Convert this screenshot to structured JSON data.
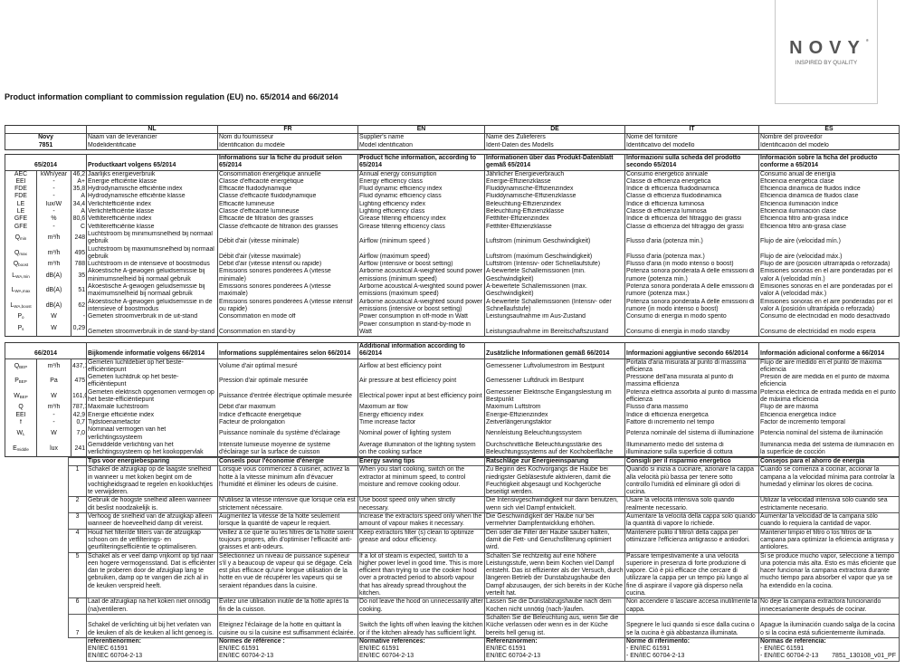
{
  "logo": {
    "brand": "NOVY",
    "tagline": "INSPIRED BY QUALITY"
  },
  "title": "Product information compliant to commission regulation (EU) no. 65/2014 and 66/2014",
  "footer": "7851_130108_v01_PF",
  "languages": [
    "NL",
    "FR",
    "EN",
    "DE",
    "IT",
    "ES"
  ],
  "supplier": {
    "name": "Novy",
    "model": "7851",
    "name_labels": [
      "Naam van de leverancier",
      "Nom du fournisseur",
      "Supplier's name",
      "Name des Zulieferers",
      "Nome del fornitore",
      "Nombre del proveedor"
    ],
    "model_labels": [
      "Modelidentificatie",
      "Identification du modèle",
      "Model identification",
      "Ident-Daten des Modells",
      "Identificativo del modello",
      "Identificación del modelo"
    ]
  },
  "table65": {
    "code": "65/2014",
    "headers": [
      "Productkaart volgens 65/2014",
      "Informations sur la fiche du produit selon 65/2014",
      "Product fiche information, according to 65/2014",
      "Informationen über das Produkt-Datenblatt gemäß 65/2014",
      "Informazioni sulla scheda del prodotto secondo 65/2014",
      "Información sobre la ficha del producto conforme a 65/2014"
    ],
    "rows": [
      {
        "sym": "AEC",
        "sub": "",
        "unit": "kWh/year",
        "value": "46,2",
        "text": [
          "Jaarlijks energieverbruik",
          "Consommation énergétique annuelle",
          "Annual energy consumption",
          "Jährlicher Energieverbrauch",
          "Consumo energetico annuale",
          "Consumo anual de energía"
        ]
      },
      {
        "sym": "EEI",
        "sub": "",
        "unit": "-",
        "value": "A+",
        "text": [
          "Energie efficiëntie klasse",
          "Classe d'efficacité énergétique",
          "Energy efficiency class",
          "Energie-Effizienzklasse",
          "Classe di efficienza energetica",
          "Eficiencia energética clase"
        ]
      },
      {
        "sym": "FDE",
        "sub": "",
        "unit": "-",
        "value": "35,8",
        "text": [
          "Hydrodynamische efficiëntie index",
          "Efficacité fluidodynamique",
          "Fluid dynamic efficiency index",
          "Fluiddynamische-Effizienzindex",
          "Indice di efficienza fluidodinamica",
          "Eficiencia dinámica de fluidos índice"
        ]
      },
      {
        "sym": "FDE",
        "sub": "",
        "unit": "-",
        "value": "A",
        "text": [
          "Hydrodynamische efficiëntie klasse",
          "Classe d'efficacité fluidodynamique",
          "Fluid dynamic efficiency class",
          "Fluiddynamische-Effizienzklasse",
          "Classe di efficienza fluidodinamica",
          "Eficiencia dinámica de fluidos clase"
        ]
      },
      {
        "sym": "LE",
        "sub": "",
        "unit": "lux/W",
        "value": "34,4",
        "text": [
          "Verlichtefficiëntie index",
          "Efficacité lumineuse",
          "Lighting efficiency index",
          "Beleuchtung-Effizienzindex",
          "Indice di efficienza luminosa",
          "Eficiencia iluminación índice"
        ]
      },
      {
        "sym": "LE",
        "sub": "",
        "unit": "-",
        "value": "A",
        "text": [
          "Verlichtefficiëntie klasse",
          "Classe d'efficacité lumineuse",
          "Lighting efficiency class",
          "Beleuchtung-Effizienzklasse",
          "Classe di efficienza luminosa",
          "Eficiencia iluminación clase"
        ]
      },
      {
        "sym": "GFE",
        "sub": "",
        "unit": "%",
        "value": "80,6",
        "text": [
          "Vetfilterefficiëntie index",
          "Efficacité de filtration des graisses",
          "Grease filtering efficiency index",
          "Fettfilter-Effizienzindex",
          "Indice di efficienza del filtraggio dei grassi",
          "Eficiencia filtro anti-grasa índice"
        ]
      },
      {
        "sym": "GFE",
        "sub": "",
        "unit": "-",
        "value": "C",
        "text": [
          "Vetfilterefficiëntie klasse",
          "Classe d'efficacité de filtration des graisses",
          "Grease filtering efficiency class",
          "Fettfilter-Effizienzklasse",
          "Classe di efficienza del filtraggio dei grassi",
          "Eficiencia filtro anti-grasa clase"
        ]
      },
      {
        "sym": "Q",
        "sub": "min",
        "unit": "m³/h",
        "value": "248",
        "text": [
          "Luchtstroom bij minimumsnelheid bij normaal gebruik",
          "Débit d'air (vitesse minimale)",
          "Airflow (minimum speed )",
          "Luftstrom (minimum Geschwindigkeit)",
          "Flusso d'aria (potenza min.)",
          "Flujo de aire (velocidad mín.)"
        ]
      },
      {
        "sym": "Q",
        "sub": "max",
        "unit": "m³/h",
        "value": "495",
        "text": [
          "Luchtstroom bij maximumsnelheid bij normaal gebruik",
          "Débit d'air (vitesse maximale)",
          "Airflow (maximum speed)",
          "Luftstrom (maximum Geschwindigkeit)",
          "Flusso d'aria (potenza max.)",
          "Flujo de aire (velocidad máx.)"
        ]
      },
      {
        "sym": "Q",
        "sub": "boost",
        "unit": "m³/h",
        "value": "788",
        "text": [
          "Luchtstroom in de intensieve of boostmodus",
          "Débit d'air (vitesse intensif ou rapide)",
          "Airflow (intensive or boost setting)",
          "Luftstrom (Intensiv- oder Schnellaufstufe)",
          "Flusso d'aria (in modo intenso o boost)",
          "Flujo de aire (posición ultrarrápida o reforzada)"
        ]
      },
      {
        "sym": "L",
        "sub": "WA,min",
        "unit": "dB(A)",
        "value": "35",
        "text": [
          "Akoestische A-gewogen geluidsemissie bij minimumsnelheid bij normaal gebruik",
          "Emissions sonores pondérées A (vitesse minimale)",
          "Airborne acoustical A-weighted sound power emissions (minimum speed)",
          "A-bewertete Schallemissionen (min. Geschwindigkeit)",
          "Potenza sonora ponderata A delle emissioni di rumore (potenza min.)",
          "Emisiones sonoras en el aire ponderadas por el valor A (velocidad mín.)"
        ]
      },
      {
        "sym": "L",
        "sub": "WA,max",
        "unit": "dB(A)",
        "value": "51",
        "text": [
          "Akoestische A-gewogen geluidsemissie bij maximumsnelheid bij normaal gebruik",
          "Emissions sonores pondérées A (vitesse maximale)",
          "Airborne acoustical A-weighted sound power emissions (maximum speed)",
          "A-bewertete Schallemissionen (max. Geschwindigkeit)",
          "Potenza sonora ponderata A delle emissioni di rumore (potenza max.)",
          "Emisiones sonoras en el aire ponderadas por el valor A (velocidad máx.)"
        ]
      },
      {
        "sym": "L",
        "sub": "WA,boost",
        "unit": "dB(A)",
        "value": "62",
        "text": [
          "Akoestische A-gewogen geluidsemissie in de intensieve of boostmodus",
          "Emissions sonores pondérées A (vitesse intensif ou rapide)",
          "Airborne acoustical A-weighted sound power emissions (intensive or boost setting)",
          "A-bewertete Schallemissionen (Intensiv- oder Schnellaufstufe)",
          "Potenza sonora ponderata A delle emissioni di rumore (in modo intenso o boost)",
          "Emisiones sonoras en el aire ponderadas por el valor A (posición ultrarrápida o reforzada)"
        ]
      },
      {
        "sym": "P",
        "sub": "o",
        "unit": "W",
        "value": "-",
        "text": [
          "Gemeten stroomverbruik in de uit-stand",
          "Consommation en mode off",
          "Power consumption in off-mode in Watt",
          "Leistungsaufnahme im Aus-Zustand",
          "Consumo di energia in modo spento",
          "Consumo de electricidad en modo desactivado"
        ]
      },
      {
        "sym": "P",
        "sub": "s",
        "unit": "W",
        "value": "0,29",
        "text": [
          "Gemeten stroomverbruik in de stand-by-stand",
          "Consommation en stand-by",
          "Power consumption in stand-by-mode in Watt",
          "Leistungsaufnahme im Bereitschaftszustand",
          "Consumo di energia in modo standby",
          "Consumo de electricidad en modo espera"
        ]
      }
    ]
  },
  "table66": {
    "code": "66/2014",
    "headers": [
      "Bijkomende informatie volgens 66/2014",
      "Informations supplémentaires selon 66/2014",
      "Additional information according to 66/2014",
      "Zusätzliche Informationen gemäß 66/2014",
      "Informazioni aggiuntive secondo 66/2014",
      "Información adicional conforme a 66/2014"
    ],
    "rows": [
      {
        "sym": "Q",
        "sub": "BEP",
        "unit": "m³/h",
        "value": "437,1",
        "text": [
          "Gemeten luchtdebiet op het beste-efficiëntiepunt",
          "Volume d'air optimal mesuré",
          "Airflow at best efficiency point",
          "Gemessener Luftvolumestrom im Bestpunt",
          "Portata d'aria misurata al punto di massima efficienza",
          "Flujo de aire medido en el punto de máxima eficiencia"
        ]
      },
      {
        "sym": "P",
        "sub": "BEP",
        "unit": "Pa",
        "value": "475",
        "text": [
          "Gemeten luchtdruk op het  beste-efficiëntiepunt",
          "Pression d'air optimale mesurée",
          "Air pressure at best efficiency point",
          "Gemessener Luftdruck im Bestpunt",
          "Pressione dell'aria misurata al punto di massima efficienza",
          "Presión de aire medida en el punto de máxima eficiencia"
        ]
      },
      {
        "sym": "W",
        "sub": "BEP",
        "unit": "W",
        "value": "161,0",
        "text": [
          "Gemeten elektrisch opgenomen vermogen op het beste-efficiëntiepunt",
          "Puissance d'entrée électrique optimale mesurée",
          "Electrical power input at best efficiency point",
          "Gemessener Elektrische Eingangsleistung im Bestpunkt",
          "Potenza elettrica assorbita al punto di massima efficienza",
          "Potencia eléctrica de entrada medida en el punto de máxima eficiencia"
        ]
      },
      {
        "sym": "Q",
        "sub": "",
        "unit": "m³/h",
        "value": "787,7",
        "text": [
          "Maximale luchtstroom",
          "Débit d'air maximum",
          "Maximum air flow",
          "Maximum Luftstrom",
          "Flusso d'aria massimo",
          "Flujo de aire máxima"
        ]
      },
      {
        "sym": "EEI",
        "sub": "",
        "unit": "-",
        "value": "42,9",
        "text": [
          "Energie efficiëntie index",
          "Indice d'efficacité énergétique",
          "Energy efficiency index",
          "Energie-Effizienzindex",
          "Indice di efficienza energetica",
          "Eficiencia energética índice"
        ]
      },
      {
        "sym": "f",
        "sub": "",
        "unit": "-",
        "value": "0,7",
        "text": [
          "Tijdstoenamefactor",
          "Facteur de prolongation",
          "Time increase factor",
          "Zeitverlängerungsfaktor",
          "Fattore di incremento nel tempo",
          "Factor de incremento temporal"
        ]
      },
      {
        "sym": "W",
        "sub": "L",
        "unit": "W",
        "value": "7,0",
        "text": [
          "Nominaal vermogen van het verlichtingssysteem",
          "Puissance nominale du système d'éclairage",
          "Nominal power of lighting system",
          "Nennleistung Beleuchtungssystem",
          "Potenza nominale del sistema di illuminazione",
          "Potencia nominal del sistema de iluminación"
        ]
      },
      {
        "sym": "E",
        "sub": "middle",
        "unit": "lux",
        "value": "241",
        "text": [
          "Gemiddelde verlichting van het verlichtingssysteem op het kookoppervlak",
          "Intensité lumieuse moyenne de système d'éclairage sur la surface de cuisson",
          "Average illumination of the lighting system on the cooking surface",
          "Durchschnittliche Beleuchtungsstärke des Beleuchtungssystems auf der Kochoberfläche",
          "Illuminamento medio del sistema di illuminazione sulla superficie di cottura",
          "Iluminancia media del sistema de iluminación en la superficie de cocción"
        ]
      }
    ]
  },
  "tips": {
    "headers": [
      "Tips voor energiebesparing",
      "Conseils pour l'économie d'énergie",
      "Energy saving tips",
      "Ratschläge zur Energieeinsparung",
      "Consigli per il risparmio energetico",
      "Consejos para el ahorro de energía"
    ],
    "rows": [
      {
        "num": "1",
        "text": [
          "Schakel de afzuigkap op de laagste snelheid in wanneer u met koken begint om de vochtigheidsgraad te regelen en kookluchtjes te verwijderen.",
          "Lorsque vous commencez à cuisiner, activez la hotte à la vitesse minimum afin d'évacuer l'humidité et éliminer les odeurs de cuisine.",
          "When you start cooking, switch on the extractor at minimum speed, to control moisture and remove cooking odour.",
          "Zu Beginn des Kochvorgangs die Haube bei niedrigster Gebläsestufe aktivieren, damit die Feuchtigkeit abgesaugt und Kochgerüche beseitigt werden.",
          "Quando si inizia a cucinare, azionare la cappa alla velocità più bassa per tenere sotto controllo l'umidità ed eliminare gli odori di cucina.",
          "Cuando se comienza a cocinar, accionar la campana a la velocidad mínima para controlar la humedad y eliminar los olores de cocina."
        ]
      },
      {
        "num": "2",
        "text": [
          "Gebruik de hoogste snelheid alleen wanneer dit beslist noodzakelijk is.",
          "N'utilisez la vitesse intensive que lorsque cela est strictement nécessaire.",
          "Use boost speed only when strictly necessary.",
          "Die Intensivgeschwindigkeit nur dann benutzen, wenn sich viel Dampf entwickelt.",
          "Usare la velocità intensiva solo quando realmente necessario.",
          "Utilizar la velocidad intensiva sólo cuando sea estrictamente necesario."
        ]
      },
      {
        "num": "3",
        "text": [
          "Verhoog de snelheid van de afzuigkap alleen wanneer de hoeveelheid damp dit vereist.",
          "Augmentez la vitesse de la hotte seulement lorsque la quantité de vapeur le requiert.",
          "Increase the extractors speed only when the amount of vapour makes it necessary.",
          "Die Geschwindigkeit der Haube nur bei vermehrter Dampfentwicklung erhöhen.",
          "Aumentare la velocità della cappa solo quando la quantità di vapore lo richiede.",
          "Aumentar la velocidad de la campana sólo cuando lo requiera la cantidad de vapor."
        ]
      },
      {
        "num": "4",
        "text": [
          "Houd het filter/de filters van de afzuigkap schoon om de vetfilterings- en geurfilteringsefficiëntie te optimaliseren.",
          "Veillez à ce que le ou les filtres de la hotte soient toujours propres, afin d'optimiser l'efficacité anti-graisses et anti-odeurs.",
          "Keep extractors filter (s) clean to optimize grease and odour efficiency.",
          "Den oder die Filter der Haube sauber halten, damit die Fett- und Geruchsfilterung optimiert wird.",
          "Mantenere pulito il filtro/i della cappa per ottimizzare l'efficienza antigrasso e antiodori.",
          "Mantener limpio el filtro o los filtros de la campana para optimizar la eficiencia antigrasa y antiolores."
        ]
      },
      {
        "num": "5",
        "text": [
          "Schakel als er veel damp vrijkomt op tijd naar een hogere vermogensstand. Dat is efficiënter dan te proberen door de afzuigkap lang te gebruiken, damp op te vangen die zich al in de keuken verspreid heeft.",
          "Sélectionnez un niveau de puissance supérieur s'il y a beaucoup de vapeur qui se dégage. Cela est plus efficace qu'une longue utilisation de la hotte en vue de récupérer les vapeurs qui se seraient répandues dans la cuisine.",
          "If a lot of steam is expected, switch to a higher power level in good time. This is more efficient than trying to use the cooker hood over a protracted period to absorb vapour that has already spread throughout the kitchen.",
          "Schalten Sie rechtzeitig auf eine höhere Leistungsstufe, wenn beim Kochen viel Dampf entsteht. Das ist effizienter als der Versuch, durch längeren Betrieb der Dunstabzugshaube den Dampf abzusaugen, der sich bereits in der Küche verteilt hat.",
          "Passare tempestivamente a una velocità superiore in presenza di forte produzione di vapore. Ciò è più efficace che cercare di utilizzare la cappa per un tempo più lungo al fine di aspirare il vapore già disperso nella cucina.",
          "Si se produce mucho vapor, seleccione a tiempo una potencia más alta. Esto es más eficiente que hacer funcionar la campana extractora durante mucho tiempo para absorber el vapor que ya se ha extendido en la cocina."
        ]
      },
      {
        "num": "6",
        "text": [
          "Laat de afzuigkap na het koken niet onnodig (na)ventileren.",
          "Évitez une utilisation inutile de la hotte après la fin de la cuisson.",
          "Do not leave the hood on unnecessarily after cooking.",
          "Lassen Sie die Dunstabzugshaube nach dem Kochen nicht unnötig (nach-)laufen.",
          "Non accendere o lasciare accesa inutilmente la cappa.",
          "No deje  la campana extractora funcionando innecesariamente después de cocinar."
        ]
      },
      {
        "num": "7",
        "text": [
          "Schakel de verlichting uit bij het verlaten van de keuken of als de keuken al licht genoeg is.",
          "Eteignez l'éclairage de la hotte en quittant la cuisine ou si la cuisine est suffisamment éclairée.",
          "Switch the lights off when leaving the kitchen or if the kitchen already has sufficient light.",
          "Schalten Sie die Beleuchtung aus, wenn Sie die Küche verlassen oder wenn es in der Küche bereits hell genug ist.",
          "Spegnere le luci quando si esce dalla cucina o se la cucina è già abbastanza illuminata.",
          "Apague la iluminación cuando salga de la cocina o si la cocina  está suficientemente iluminada."
        ]
      }
    ],
    "references": [
      {
        "label": "referentienormen:",
        "lines": [
          "EN/IEC 61591",
          "EN/IEC 60704-2-13"
        ]
      },
      {
        "label": "Normes de référence :",
        "lines": [
          "EN/IEC 61591",
          "EN/IEC 60704-2-13"
        ]
      },
      {
        "label": "Normative references:",
        "lines": [
          "EN/IEC 61591",
          "EN/IEC 60704-2-13"
        ]
      },
      {
        "label": "Referenznormen:",
        "lines": [
          "EN/IEC 61591",
          "EN/IEC 60704-2-13"
        ]
      },
      {
        "label": "Norme di riferimento:",
        "lines": [
          "- EN/IEC 61591",
          "- EN/IEC 60704-2-13"
        ]
      },
      {
        "label": "Normas de referencia:",
        "lines": [
          "- EN/IEC 61591",
          "- EN/IEC 60704-2-13"
        ]
      }
    ]
  }
}
